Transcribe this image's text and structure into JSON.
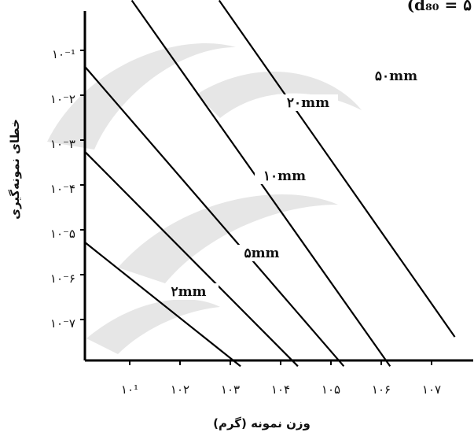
{
  "chart_data": {
    "type": "line",
    "xlabel": "وزن نمونه (گرم)",
    "ylabel": "خطای نمونه‌گیری",
    "corner_label": "(d₈₀ = ۵",
    "x_scale": "log",
    "y_scale": "log",
    "x_ticks": [
      {
        "value": 10,
        "label": "۱۰¹"
      },
      {
        "value": 100,
        "label": "۱۰۲"
      },
      {
        "value": 1000,
        "label": "۱۰۳"
      },
      {
        "value": 10000,
        "label": "۱۰۴"
      },
      {
        "value": 100000,
        "label": "۱۰۵"
      },
      {
        "value": 1000000,
        "label": "۱۰۶"
      },
      {
        "value": 10000000,
        "label": "۱۰۷"
      }
    ],
    "y_ticks": [
      {
        "value": 0.1,
        "label": "۱۰⁻¹"
      },
      {
        "value": 0.01,
        "label": "۱۰⁻۲"
      },
      {
        "value": 0.001,
        "label": "۱۰⁻۳"
      },
      {
        "value": 0.0001,
        "label": "۱۰⁻۴"
      },
      {
        "value": 1e-05,
        "label": "۱۰⁻۵"
      },
      {
        "value": 1e-06,
        "label": "۱۰⁻۶"
      },
      {
        "value": 1e-07,
        "label": "۱۰⁻۷"
      }
    ],
    "xlim": [
      1.25,
      30000000
    ],
    "ylim": [
      9e-09,
      1.3
    ],
    "series": [
      {
        "name": "۲mm",
        "x": [
          1.25,
          1600
        ],
        "y": [
          5.4e-06,
          9.1e-09
        ]
      },
      {
        "name": "۵mm",
        "x": [
          1.25,
          22000
        ],
        "y": [
          0.00057,
          9.1e-09
        ]
      },
      {
        "name": "۱۰mm",
        "x": [
          1.25,
          180000
        ],
        "y": [
          0.045,
          9.1e-09
        ]
      },
      {
        "name": "۲۰mm",
        "x": [
          11,
          1500000
        ],
        "y": [
          1.3,
          9.1e-09
        ]
      },
      {
        "name": "۵۰mm",
        "x": [
          600,
          29000000
        ],
        "y": [
          1.3,
          4.1e-08
        ]
      }
    ],
    "grid": false,
    "legend": "none"
  }
}
